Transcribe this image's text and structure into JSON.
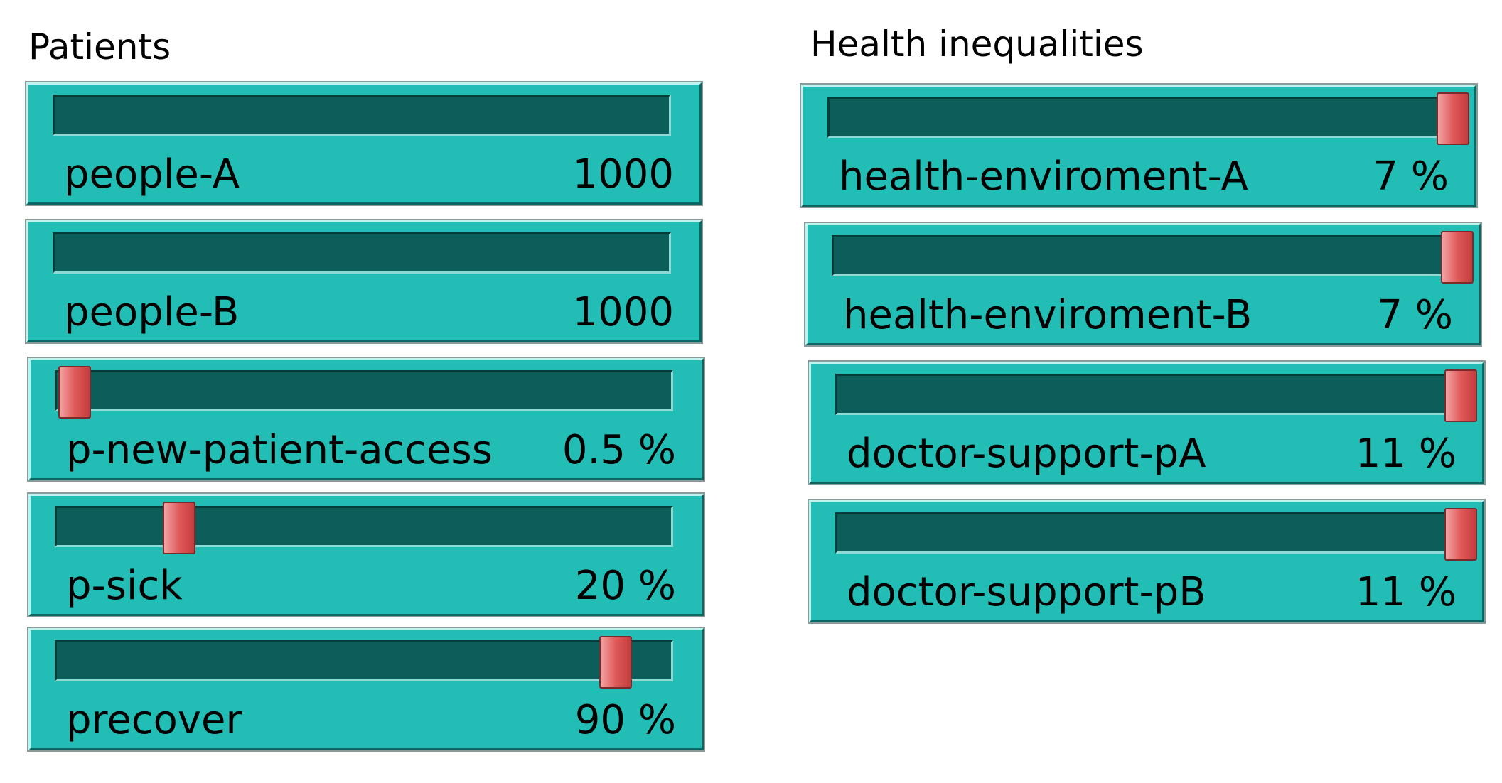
{
  "groups": [
    {
      "title": "Patients",
      "sliders": [
        {
          "label": "people-A",
          "value": 1000
        },
        {
          "label": "people-B",
          "value": 1000
        },
        {
          "label": "p-new-patient-access",
          "value": 0.5,
          "units": "%"
        },
        {
          "label": "p-sick",
          "value": 20,
          "units": "%"
        },
        {
          "label": "precover",
          "value": 90,
          "units": "%"
        }
      ]
    },
    {
      "title": "Health inequalities",
      "sliders": [
        {
          "label": "health-enviroment-A",
          "value": 7,
          "units": "%"
        },
        {
          "label": "health-enviroment-B",
          "value": 7,
          "units": "%"
        },
        {
          "label": "doctor-support-pA",
          "value": 11,
          "units": "%"
        },
        {
          "label": "doctor-support-pB",
          "value": 11,
          "units": "%"
        }
      ]
    }
  ]
}
